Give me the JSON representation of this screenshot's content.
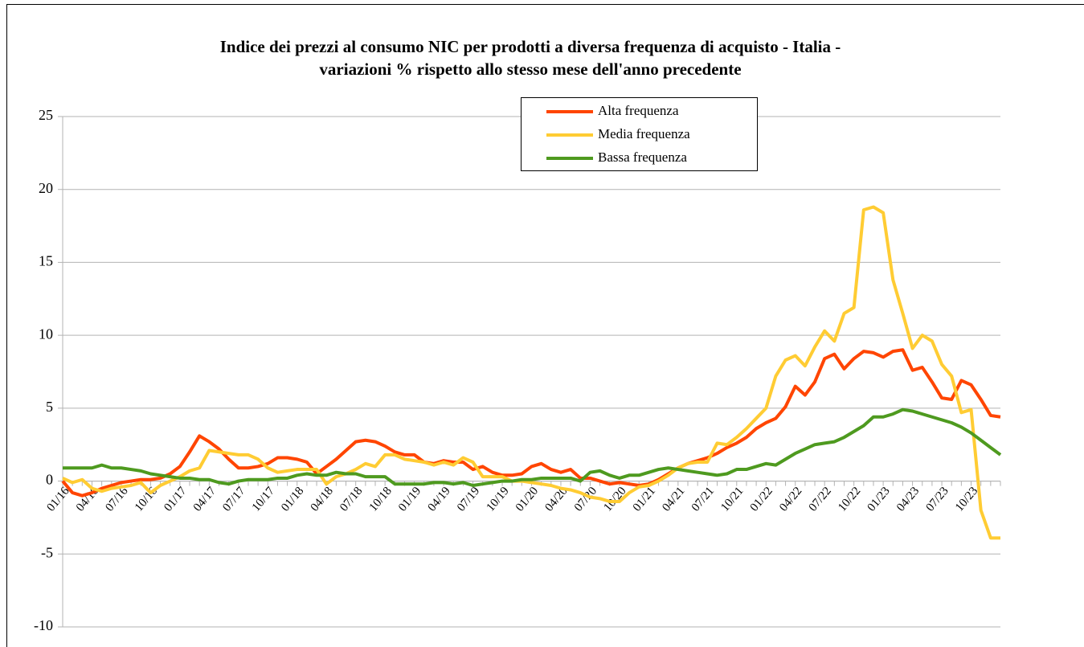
{
  "chart_data": {
    "type": "line",
    "title": [
      "Indice dei prezzi al consumo NIC per prodotti a diversa frequenza di acquisto - Italia -",
      "variazioni % rispetto allo stesso mese dell'anno precedente"
    ],
    "categories": [
      "01/16",
      null,
      null,
      "04/16",
      null,
      null,
      "07/16",
      null,
      null,
      "10/16",
      null,
      null,
      "01/17",
      null,
      null,
      "04/17",
      null,
      null,
      "07/17",
      null,
      null,
      "10/17",
      null,
      null,
      "01/18",
      null,
      null,
      "04/18",
      null,
      null,
      "07/18",
      null,
      null,
      "10/18",
      null,
      null,
      "01/19",
      null,
      null,
      "04/19",
      null,
      null,
      "07/19",
      null,
      null,
      "10/19",
      null,
      null,
      "01/20",
      null,
      null,
      "04/20",
      null,
      null,
      "07/20",
      null,
      null,
      "10/20",
      null,
      null,
      "01/21",
      null,
      null,
      "04/21",
      null,
      null,
      "07/21",
      null,
      null,
      "10/21",
      null,
      null,
      "01/22",
      null,
      null,
      "04/22",
      null,
      null,
      "07/22",
      null,
      null,
      "10/22",
      null,
      null,
      "01/23",
      null,
      null,
      "04/23",
      null,
      null,
      "07/23",
      null,
      null,
      "10/23",
      null,
      null,
      null
    ],
    "series": [
      {
        "name": "Alta frequenza",
        "color": "#ff4500",
        "values": [
          0.0,
          -0.8,
          -1.0,
          -0.8,
          -0.5,
          -0.3,
          -0.1,
          0.0,
          0.1,
          0.1,
          0.2,
          0.5,
          1.0,
          2.0,
          3.1,
          2.7,
          2.2,
          1.5,
          0.9,
          0.9,
          1.0,
          1.2,
          1.6,
          1.6,
          1.5,
          1.3,
          0.5,
          1.0,
          1.5,
          2.1,
          2.7,
          2.8,
          2.7,
          2.4,
          2.0,
          1.8,
          1.8,
          1.3,
          1.2,
          1.4,
          1.3,
          1.3,
          0.8,
          1.0,
          0.6,
          0.4,
          0.4,
          0.5,
          1.0,
          1.2,
          0.8,
          0.6,
          0.8,
          0.2,
          0.2,
          0.0,
          -0.2,
          -0.1,
          -0.2,
          -0.3,
          -0.2,
          0.1,
          0.5,
          0.9,
          1.2,
          1.4,
          1.6,
          1.9,
          2.3,
          2.6,
          3.0,
          3.6,
          4.0,
          4.3,
          5.1,
          6.5,
          5.9,
          6.8,
          8.4,
          8.7,
          7.7,
          8.4,
          8.9,
          8.8,
          8.5,
          8.9,
          9.0,
          7.6,
          7.8,
          6.8,
          5.7,
          5.6,
          6.9,
          6.6,
          5.6,
          4.5,
          4.4
        ]
      },
      {
        "name": "Media frequenza",
        "color": "#ffcc33",
        "values": [
          0.2,
          -0.1,
          0.1,
          -0.5,
          -0.7,
          -0.5,
          -0.4,
          -0.3,
          -0.1,
          -0.8,
          -0.3,
          0.0,
          0.3,
          0.7,
          0.9,
          2.1,
          2.0,
          1.9,
          1.8,
          1.8,
          1.5,
          0.9,
          0.6,
          0.7,
          0.8,
          0.8,
          0.8,
          -0.2,
          0.3,
          0.5,
          0.8,
          1.2,
          1.0,
          1.8,
          1.8,
          1.5,
          1.4,
          1.3,
          1.1,
          1.3,
          1.1,
          1.6,
          1.3,
          0.3,
          0.3,
          0.3,
          0.0,
          0.0,
          -0.1,
          -0.2,
          -0.3,
          -0.5,
          -0.6,
          -0.8,
          -1.1,
          -1.2,
          -1.4,
          -1.4,
          -0.8,
          -0.4,
          -0.3,
          0.0,
          0.4,
          0.9,
          1.2,
          1.3,
          1.3,
          2.6,
          2.5,
          3.0,
          3.6,
          4.3,
          5.0,
          7.2,
          8.3,
          8.6,
          7.9,
          9.2,
          10.3,
          9.6,
          11.5,
          11.9,
          18.6,
          18.8,
          18.4,
          13.8,
          11.5,
          9.1,
          10.0,
          9.6,
          8.0,
          7.2,
          4.7,
          4.9,
          -2.0,
          -3.9,
          -3.9
        ]
      },
      {
        "name": "Bassa frequenza",
        "color": "#4e9a1f",
        "values": [
          0.9,
          0.9,
          0.9,
          0.9,
          1.1,
          0.9,
          0.9,
          0.8,
          0.7,
          0.5,
          0.4,
          0.3,
          0.2,
          0.2,
          0.1,
          0.1,
          -0.1,
          -0.2,
          0.0,
          0.1,
          0.1,
          0.1,
          0.2,
          0.2,
          0.4,
          0.5,
          0.4,
          0.4,
          0.6,
          0.5,
          0.5,
          0.3,
          0.3,
          0.3,
          -0.2,
          -0.2,
          -0.2,
          -0.2,
          -0.1,
          -0.1,
          -0.2,
          -0.1,
          -0.3,
          -0.2,
          -0.1,
          0.0,
          0.0,
          0.1,
          0.1,
          0.2,
          0.2,
          0.2,
          0.2,
          0.0,
          0.6,
          0.7,
          0.4,
          0.2,
          0.4,
          0.4,
          0.6,
          0.8,
          0.9,
          0.8,
          0.7,
          0.6,
          0.5,
          0.4,
          0.5,
          0.8,
          0.8,
          1.0,
          1.2,
          1.1,
          1.5,
          1.9,
          2.2,
          2.5,
          2.6,
          2.7,
          3.0,
          3.4,
          3.8,
          4.4,
          4.4,
          4.6,
          4.9,
          4.8,
          4.6,
          4.4,
          4.2,
          4.0,
          3.7,
          3.3,
          2.8,
          2.3,
          1.8
        ]
      }
    ],
    "ylim": [
      -10,
      25
    ],
    "yticks": [
      -10,
      -5,
      0,
      5,
      10,
      15,
      20,
      25
    ],
    "grid": true,
    "legend": "top"
  }
}
